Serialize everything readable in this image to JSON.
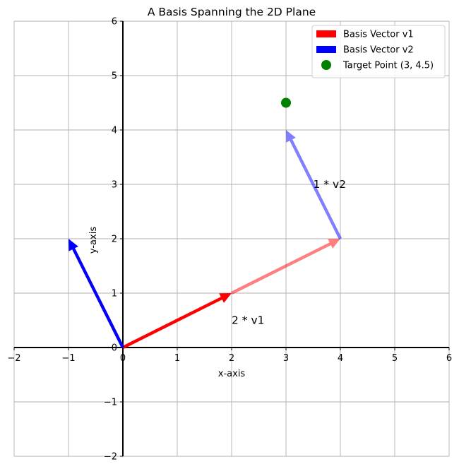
{
  "chart_data": {
    "type": "scatter",
    "title": "A Basis Spanning the 2D Plane",
    "xlabel": "x-axis",
    "ylabel": "y-axis",
    "xlim": [
      -2,
      6
    ],
    "ylim": [
      -2,
      6
    ],
    "xticks": [
      -2,
      -1,
      0,
      1,
      2,
      3,
      4,
      5,
      6
    ],
    "yticks": [
      -2,
      -1,
      0,
      1,
      2,
      3,
      4,
      5,
      6
    ],
    "xtick_labels": [
      "−2",
      "−1",
      "0",
      "1",
      "2",
      "3",
      "4",
      "5",
      "6"
    ],
    "ytick_labels": [
      "−2",
      "−1",
      "0",
      "1",
      "2",
      "3",
      "4",
      "5",
      "6"
    ],
    "grid": true,
    "legend_position": "top-right",
    "vectors": [
      {
        "name": "Basis Vector v1",
        "from": [
          0,
          0
        ],
        "to": [
          2,
          1
        ],
        "color": "#ff0000",
        "opacity": 1,
        "in_legend": true
      },
      {
        "name": "Basis Vector v2",
        "from": [
          0,
          0
        ],
        "to": [
          -1,
          2
        ],
        "color": "#0000ff",
        "opacity": 1,
        "in_legend": true
      },
      {
        "from": [
          2,
          1
        ],
        "to": [
          4,
          2
        ],
        "color": "#ff0000",
        "opacity": 0.5,
        "in_legend": false
      },
      {
        "from": [
          4,
          2
        ],
        "to": [
          3,
          4
        ],
        "color": "#0000ff",
        "opacity": 0.5,
        "in_legend": false
      }
    ],
    "points": [
      {
        "name": "Target Point (3, 4.5)",
        "x": 3,
        "y": 4.5,
        "color": "#008000"
      }
    ],
    "annotations": [
      {
        "text": "2 * v1",
        "x": 2.0,
        "y": 0.5
      },
      {
        "text": "1 * v2",
        "x": 3.5,
        "y": 3.0
      }
    ]
  }
}
